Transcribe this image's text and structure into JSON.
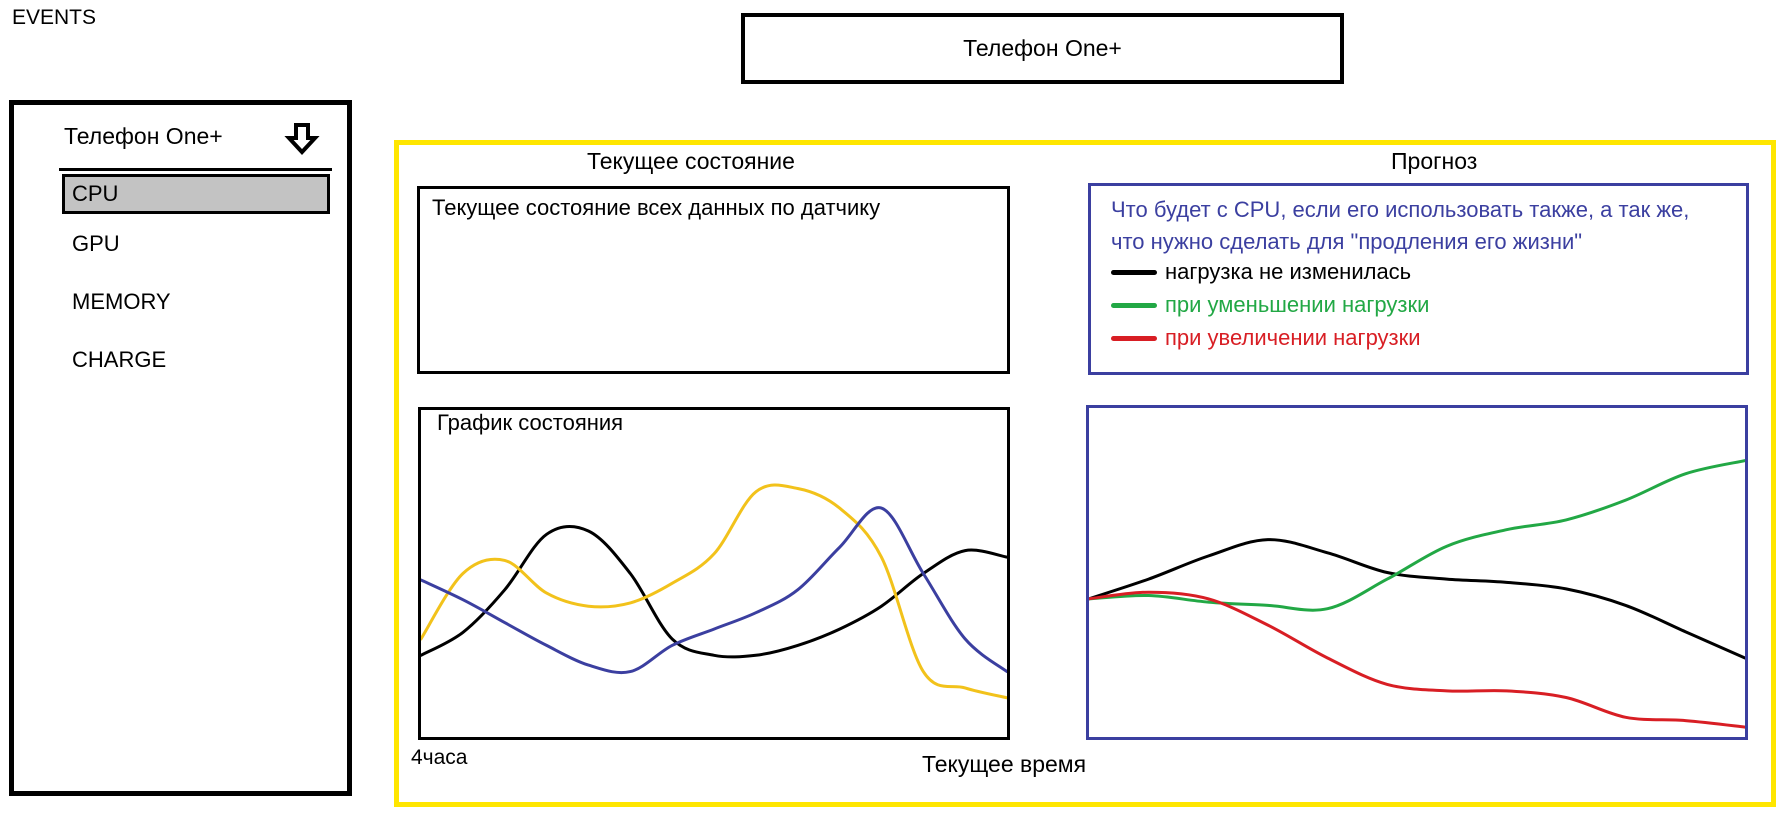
{
  "app_title": "EVENTS",
  "header": {
    "device_name": "Телефон One+"
  },
  "sidebar": {
    "device_label": "Телефон One+",
    "dropdown_icon": "arrow-down-icon",
    "items": [
      {
        "label": "CPU",
        "active": true
      },
      {
        "label": "GPU",
        "active": false
      },
      {
        "label": "MEMORY",
        "active": false
      },
      {
        "label": "CHARGE",
        "active": false
      }
    ]
  },
  "main": {
    "current": {
      "title": "Текущее состояние",
      "box_text": "Текущее состояние всех данных по датчику"
    },
    "forecast": {
      "title": "Прогноз",
      "description": "Что будет с CPU, если его использовать также, а так же, что нужно сделать для \"продления его жизни\"",
      "legend": [
        {
          "label": "нагрузка не изменилась",
          "color": "#000000"
        },
        {
          "label": "при уменьшении нагрузки",
          "color": "#22a845"
        },
        {
          "label": "при увеличении нагрузки",
          "color": "#d81e24"
        }
      ]
    },
    "state_chart": {
      "title": "График состояния",
      "x_start_label": "4часа",
      "x_end_label": "Текущее время"
    }
  },
  "chart_data": [
    {
      "type": "line",
      "title": "График состояния",
      "x_labels": [
        "4часа",
        "Текущее время"
      ],
      "series": [
        {
          "color": "#000000",
          "values": [
            0.25,
            0.32,
            0.45,
            0.62,
            0.63,
            0.5,
            0.3,
            0.25,
            0.25,
            0.28,
            0.33,
            0.4,
            0.5,
            0.57,
            0.55
          ]
        },
        {
          "color": "#f2c21b",
          "values": [
            0.3,
            0.5,
            0.54,
            0.44,
            0.4,
            0.41,
            0.47,
            0.56,
            0.75,
            0.76,
            0.7,
            0.55,
            0.2,
            0.15,
            0.12
          ]
        },
        {
          "color": "#3b3fa0",
          "values": [
            0.48,
            0.42,
            0.35,
            0.28,
            0.22,
            0.2,
            0.28,
            0.33,
            0.38,
            0.45,
            0.58,
            0.7,
            0.5,
            0.3,
            0.2
          ]
        }
      ]
    },
    {
      "type": "line",
      "series": [
        {
          "name": "нагрузка не изменилась",
          "color": "#000000",
          "values": [
            0.42,
            0.48,
            0.55,
            0.6,
            0.56,
            0.5,
            0.48,
            0.47,
            0.45,
            0.4,
            0.32,
            0.24
          ]
        },
        {
          "name": "при уменьшении нагрузки",
          "color": "#22a845",
          "values": [
            0.42,
            0.43,
            0.41,
            0.4,
            0.39,
            0.48,
            0.58,
            0.63,
            0.66,
            0.72,
            0.8,
            0.84
          ]
        },
        {
          "name": "при увеличении нагрузки",
          "color": "#d81e24",
          "values": [
            0.42,
            0.44,
            0.42,
            0.34,
            0.24,
            0.16,
            0.14,
            0.14,
            0.12,
            0.06,
            0.05,
            0.03
          ]
        }
      ]
    }
  ]
}
